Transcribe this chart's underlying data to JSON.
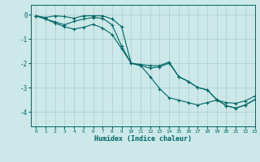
{
  "background_color": "#cce8e8",
  "grid_color": "#aacccc",
  "line_color": "#006666",
  "xlabel": "Humidex (Indice chaleur)",
  "xlim": [
    -0.5,
    23
  ],
  "ylim": [
    -4.6,
    0.4
  ],
  "yticks": [
    0,
    -1,
    -2,
    -3,
    -4
  ],
  "line1_x": [
    0,
    1,
    2,
    3,
    4,
    5,
    6,
    7,
    8,
    9,
    10,
    11,
    12,
    13,
    14,
    15,
    16,
    17,
    18,
    19,
    20,
    21,
    22,
    23
  ],
  "line1_y": [
    -0.05,
    -0.12,
    -0.05,
    -0.08,
    -0.15,
    -0.05,
    -0.05,
    -0.05,
    -0.18,
    -0.5,
    -2.0,
    -2.05,
    -2.1,
    -2.1,
    -1.95,
    -2.55,
    -2.75,
    -3.0,
    -3.1,
    -3.5,
    -3.75,
    -3.85,
    -3.72,
    -3.5
  ],
  "line2_x": [
    0,
    1,
    2,
    3,
    4,
    5,
    6,
    7,
    8,
    9,
    10,
    11,
    12,
    13,
    14,
    15,
    16,
    17,
    18,
    19,
    20,
    21,
    22,
    23
  ],
  "line2_y": [
    -0.05,
    -0.18,
    -0.3,
    -0.42,
    -0.28,
    -0.18,
    -0.12,
    -0.15,
    -0.42,
    -1.3,
    -2.0,
    -2.1,
    -2.55,
    -3.05,
    -3.42,
    -3.52,
    -3.62,
    -3.72,
    -3.62,
    -3.52,
    -3.62,
    -3.65,
    -3.55,
    -3.35
  ],
  "line3_x": [
    0,
    1,
    2,
    3,
    4,
    5,
    6,
    7,
    8,
    9,
    10,
    11,
    12,
    13,
    14,
    15,
    16,
    17,
    18,
    19,
    20,
    21,
    22,
    23
  ],
  "line3_y": [
    -0.05,
    -0.18,
    -0.35,
    -0.5,
    -0.6,
    -0.52,
    -0.4,
    -0.55,
    -0.82,
    -1.4,
    -2.0,
    -2.1,
    -2.2,
    -2.15,
    -2.0,
    -2.55,
    -2.75,
    -3.0,
    -3.1,
    -3.5,
    -3.75,
    -3.85,
    -3.72,
    -3.5
  ]
}
